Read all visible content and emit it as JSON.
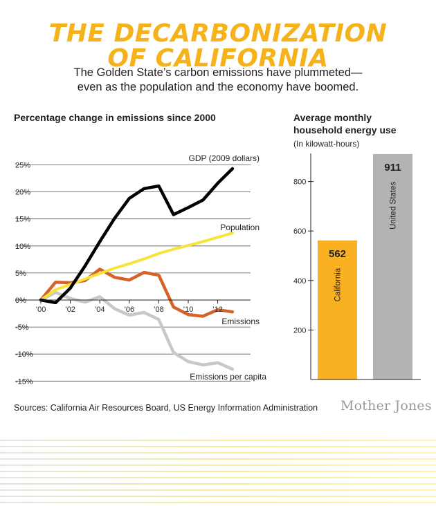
{
  "header": {
    "title_line1": "THE DECARBONIZATION",
    "title_line2": "OF CALIFORNIA",
    "subtitle_line1": "The Golden State’s carbon emissions have plummeted—",
    "subtitle_line2": "even as the population and the economy have boomed."
  },
  "footer": {
    "sources": "Sources: California Air Resources Board, US Energy Information Administration",
    "logo": "Mother Jones"
  },
  "chart_data": [
    {
      "type": "line",
      "title": "Percentage change in emissions since 2000",
      "xlabel": "",
      "ylabel": "",
      "x": [
        2000,
        2001,
        2002,
        2003,
        2004,
        2005,
        2006,
        2007,
        2008,
        2009,
        2010,
        2011,
        2012,
        2013
      ],
      "xticks": [
        2000,
        2002,
        2004,
        2006,
        2008,
        2010,
        2012
      ],
      "xtick_labels": [
        "’00",
        "’02",
        "’04",
        "’06",
        "’08",
        "’10",
        "’12"
      ],
      "yticks": [
        25,
        20,
        15,
        10,
        5,
        0,
        -5,
        -10,
        -15
      ],
      "ytick_labels": [
        "25%",
        "20%",
        "15%",
        "10%",
        "5%",
        "0%",
        "-5%",
        "-10%",
        "-15%"
      ],
      "ylim": [
        -15,
        25
      ],
      "grid": "horizontal",
      "series": [
        {
          "name": "GDP (2009 dollars)",
          "color": "#000000",
          "values": [
            0,
            -0.5,
            2.2,
            6.3,
            10.8,
            15.1,
            18.8,
            20.6,
            21.1,
            15.8,
            17.1,
            18.5,
            21.6,
            24.3
          ]
        },
        {
          "name": "Population",
          "color": "#f7e43a",
          "values": [
            0,
            1.9,
            2.9,
            3.9,
            4.9,
            5.9,
            6.7,
            7.6,
            8.6,
            9.4,
            10.1,
            10.8,
            11.6,
            12.4
          ]
        },
        {
          "name": "Emissions",
          "color": "#d6622a",
          "values": [
            0,
            3.3,
            3.2,
            3.6,
            5.7,
            4.2,
            3.7,
            5.1,
            4.6,
            -1.3,
            -2.7,
            -3.0,
            -1.8,
            -2.2
          ]
        },
        {
          "name": "Emissions per capita",
          "color": "#c8c8c8",
          "values": [
            0,
            1.4,
            0.3,
            -0.4,
            0.6,
            -1.6,
            -2.8,
            -2.3,
            -3.6,
            -9.7,
            -11.4,
            -12.0,
            -11.6,
            -12.8
          ]
        }
      ]
    },
    {
      "type": "bar",
      "title": "Average monthly household energy use",
      "subtitle": "(In kilowatt-hours)",
      "xlabel": "",
      "ylabel": "",
      "categories": [
        "California",
        "United States"
      ],
      "values": [
        562,
        911
      ],
      "colors": [
        "#f9b121",
        "#b3b3b3"
      ],
      "value_labels": [
        "562",
        "911"
      ],
      "yticks": [
        200,
        400,
        600,
        800
      ],
      "ylim": [
        0,
        911
      ],
      "grid": "none"
    }
  ]
}
